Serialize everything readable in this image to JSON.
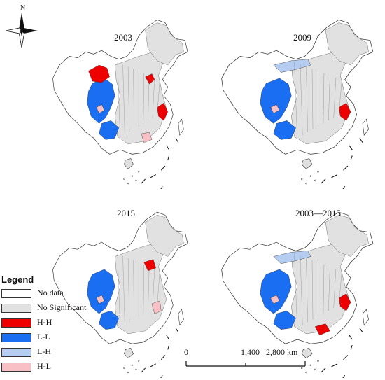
{
  "compass": {
    "label": "N",
    "icon": "north-arrow-icon"
  },
  "panels": [
    {
      "title": "2003",
      "highlight": [
        "northwest-hh",
        "north-central-hh",
        "east-hh",
        "southeast-hl"
      ]
    },
    {
      "title": "2009",
      "highlight": [
        "north-lh",
        "east-hh"
      ]
    },
    {
      "title": "2015",
      "highlight": [
        "north-hh",
        "east-hl"
      ]
    },
    {
      "title": "2003—2015",
      "highlight": [
        "north-lh",
        "east-hh",
        "south-hh"
      ]
    }
  ],
  "legend": {
    "title": "Legend",
    "items": [
      {
        "label": "No data",
        "color": "#ffffff"
      },
      {
        "label": "No Significant",
        "color": "#e1e1e1"
      },
      {
        "label": "H-H",
        "color": "#ee0000"
      },
      {
        "label": "L-L",
        "color": "#1a6ef2"
      },
      {
        "label": "L-H",
        "color": "#b5cdf0"
      },
      {
        "label": "H-L",
        "color": "#f8c0c4"
      }
    ]
  },
  "scale_bar": {
    "labels": [
      "0",
      "1,400",
      "2,800 km"
    ]
  },
  "colors": {
    "no_data": "#ffffff",
    "no_significant": "#e1e1e1",
    "hh": "#ee0000",
    "ll": "#1a6ef2",
    "lh": "#b5cdf0",
    "hl": "#f8c0c4",
    "outline": "#333333"
  }
}
